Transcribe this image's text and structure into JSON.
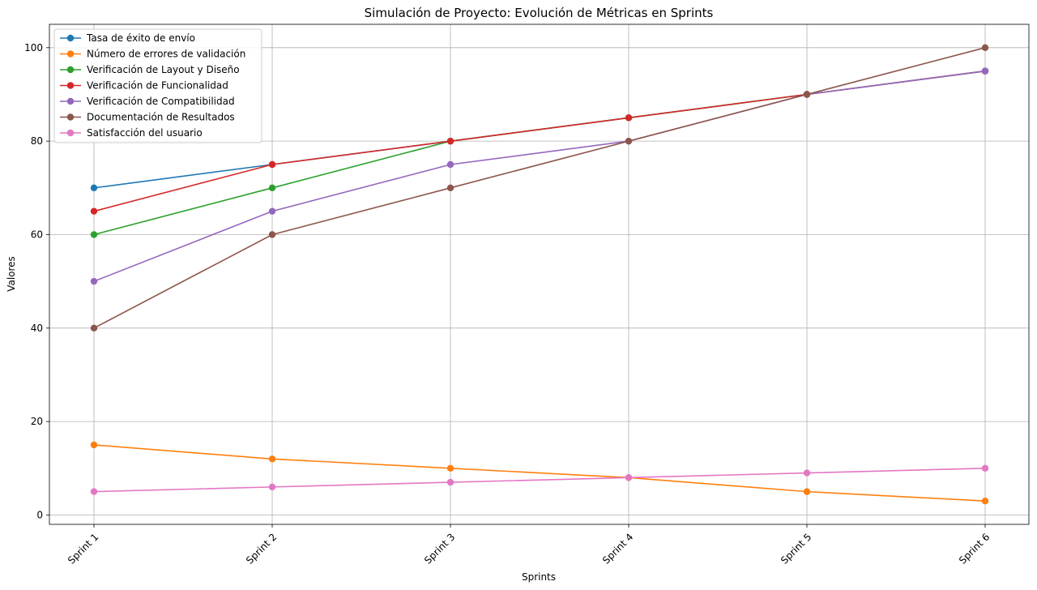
{
  "chart_data": {
    "type": "line",
    "title": "Simulación de Proyecto: Evolución de Métricas en Sprints",
    "xlabel": "Sprints",
    "ylabel": "Valores",
    "categories": [
      "Sprint 1",
      "Sprint 2",
      "Sprint 3",
      "Sprint 4",
      "Sprint 5",
      "Sprint 6"
    ],
    "ylim": [
      -2,
      105
    ],
    "yticks": [
      0,
      20,
      40,
      60,
      80,
      100
    ],
    "grid": true,
    "legend_position": "top-left",
    "series": [
      {
        "name": "Tasa de éxito de envío",
        "color": "#1f77b4",
        "values": [
          70,
          75,
          80,
          85,
          90,
          95
        ]
      },
      {
        "name": "Número de errores de validación",
        "color": "#ff7f0e",
        "values": [
          15,
          12,
          10,
          8,
          5,
          3
        ]
      },
      {
        "name": "Verificación de Layout y Diseño",
        "color": "#2ca02c",
        "values": [
          60,
          70,
          80,
          85,
          90,
          95
        ]
      },
      {
        "name": "Verificación de Funcionalidad",
        "color": "#d62728",
        "values": [
          65,
          75,
          80,
          85,
          90,
          95
        ]
      },
      {
        "name": "Verificación de Compatibilidad",
        "color": "#9467bd",
        "values": [
          50,
          65,
          75,
          80,
          90,
          95
        ]
      },
      {
        "name": "Documentación de Resultados",
        "color": "#8c564b",
        "values": [
          40,
          60,
          70,
          80,
          90,
          100
        ]
      },
      {
        "name": "Satisfacción del usuario",
        "color": "#e377c2",
        "values": [
          5,
          6,
          7,
          8,
          9,
          10
        ]
      }
    ]
  }
}
